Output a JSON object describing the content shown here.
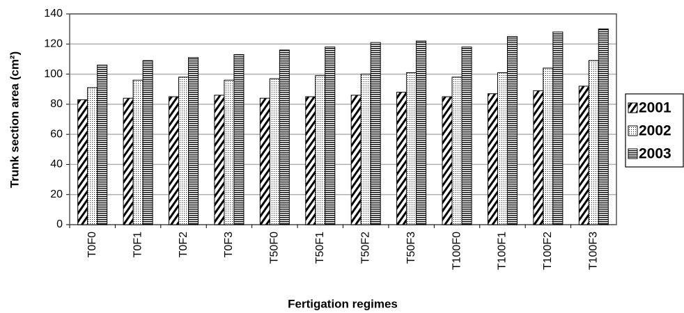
{
  "chart_data": {
    "type": "bar",
    "x_label": "Fertigation regimes",
    "y_label": "Trunk section area (cm²)",
    "categories": [
      "T0F0",
      "T0F1",
      "T0F2",
      "T0F3",
      "T50F0",
      "T50F1",
      "T50F2",
      "T50F3",
      "T100F0",
      "T100F1",
      "T100F2",
      "T100F3"
    ],
    "series": [
      {
        "name": "2001",
        "color": "#000000",
        "pattern": "diagonal",
        "values": [
          83,
          84,
          85,
          86,
          84,
          85,
          86,
          88,
          85,
          87,
          89,
          92
        ]
      },
      {
        "name": "2002",
        "color": "#000000",
        "pattern": "dots",
        "values": [
          91,
          96,
          98,
          96,
          97,
          99,
          100,
          101,
          98,
          101,
          104,
          109
        ]
      },
      {
        "name": "2003",
        "color": "#000000",
        "pattern": "horizontal",
        "values": [
          106,
          109,
          111,
          113,
          116,
          118,
          121,
          122,
          118,
          125,
          128,
          130
        ]
      }
    ],
    "ylim": [
      0,
      140
    ],
    "yticks": [
      0,
      20,
      40,
      60,
      80,
      100,
      120,
      140
    ],
    "grid": true,
    "legend": "right"
  }
}
